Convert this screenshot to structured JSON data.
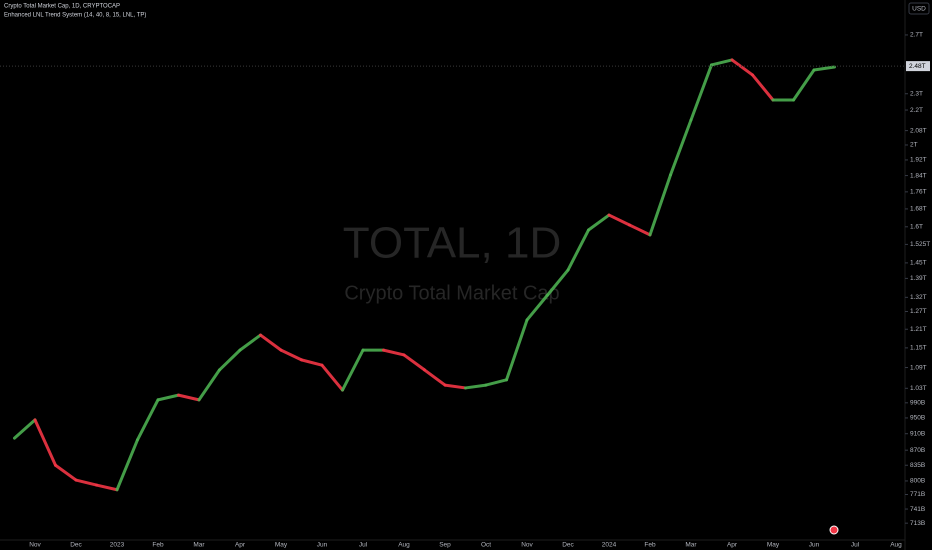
{
  "chart_data": {
    "type": "line",
    "title": "Crypto Total Market Cap, 1D, CRYPTOCAP",
    "subtitle": "Enhanced LNL Trend System (14, 40, 8, 15, LNL, TP)",
    "watermark_symbol": "TOTAL, 1D",
    "watermark_name": "Crypto Total Market Cap",
    "currency": "USD",
    "categories": [
      null,
      "Nov",
      null,
      "Dec",
      null,
      "2023",
      null,
      "Feb",
      null,
      "Mar",
      null,
      "Apr",
      null,
      "May",
      null,
      "Jun",
      null,
      "Jul",
      null,
      "Aug",
      null,
      "Sep",
      null,
      "Oct",
      null,
      "Nov",
      null,
      "Dec",
      null,
      "2024",
      null,
      "Feb",
      null,
      "Mar",
      null,
      "Apr",
      null,
      "May",
      null,
      "Jun",
      null,
      "Jul",
      null,
      "Aug"
    ],
    "values": [
      899000000000,
      945000000000,
      835000000000,
      802000000000,
      791000000000,
      781000000000,
      895000000000,
      998000000000,
      1011000000000,
      998000000000,
      1083000000000,
      1143000000000,
      1191000000000,
      1143000000000,
      1113000000000,
      1097000000000,
      1025000000000,
      1143000000000,
      1143000000000,
      1128000000000,
      1083000000000,
      1039000000000,
      1031000000000,
      1039000000000,
      1054000000000,
      1241000000000,
      1328000000000,
      1422000000000,
      1586000000000,
      1652000000000,
      1608000000000,
      1565000000000,
      1843000000000,
      2141000000000,
      2488000000000,
      2522000000000,
      2421000000000,
      2261000000000,
      2261000000000,
      2454000000000,
      2474000000000,
      null,
      null,
      null
    ],
    "up_color": "#4caf50",
    "down_color": "#f23645",
    "log_scale": true,
    "ylim": [
      681000000000,
      2970000000000
    ],
    "yticks": [
      {
        "value": 2700000000000,
        "label": "2.7T"
      },
      {
        "value": 2300000000000,
        "label": "2.3T"
      },
      {
        "value": 2200000000000,
        "label": "2.2T"
      },
      {
        "value": 2080000000000,
        "label": "2.08T"
      },
      {
        "value": 2000000000000,
        "label": "2T"
      },
      {
        "value": 1920000000000,
        "label": "1.92T"
      },
      {
        "value": 1840000000000,
        "label": "1.84T"
      },
      {
        "value": 1760000000000,
        "label": "1.76T"
      },
      {
        "value": 1680000000000,
        "label": "1.68T"
      },
      {
        "value": 1600000000000,
        "label": "1.6T"
      },
      {
        "value": 1525000000000,
        "label": "1.525T"
      },
      {
        "value": 1450000000000,
        "label": "1.45T"
      },
      {
        "value": 1390000000000,
        "label": "1.39T"
      },
      {
        "value": 1320000000000,
        "label": "1.32T"
      },
      {
        "value": 1270000000000,
        "label": "1.27T"
      },
      {
        "value": 1210000000000,
        "label": "1.21T"
      },
      {
        "value": 1150000000000,
        "label": "1.15T"
      },
      {
        "value": 1090000000000,
        "label": "1.09T"
      },
      {
        "value": 1030000000000,
        "label": "1.03T"
      },
      {
        "value": 990000000000,
        "label": "990B"
      },
      {
        "value": 950000000000,
        "label": "950B"
      },
      {
        "value": 910000000000,
        "label": "910B"
      },
      {
        "value": 870000000000,
        "label": "870B"
      },
      {
        "value": 835000000000,
        "label": "835B"
      },
      {
        "value": 800000000000,
        "label": "800B"
      },
      {
        "value": 771000000000,
        "label": "771B"
      },
      {
        "value": 741000000000,
        "label": "741B"
      },
      {
        "value": 713000000000,
        "label": "713B"
      }
    ],
    "current_price": {
      "value": 2480000000000,
      "label": "2.48T"
    },
    "grid": false
  }
}
